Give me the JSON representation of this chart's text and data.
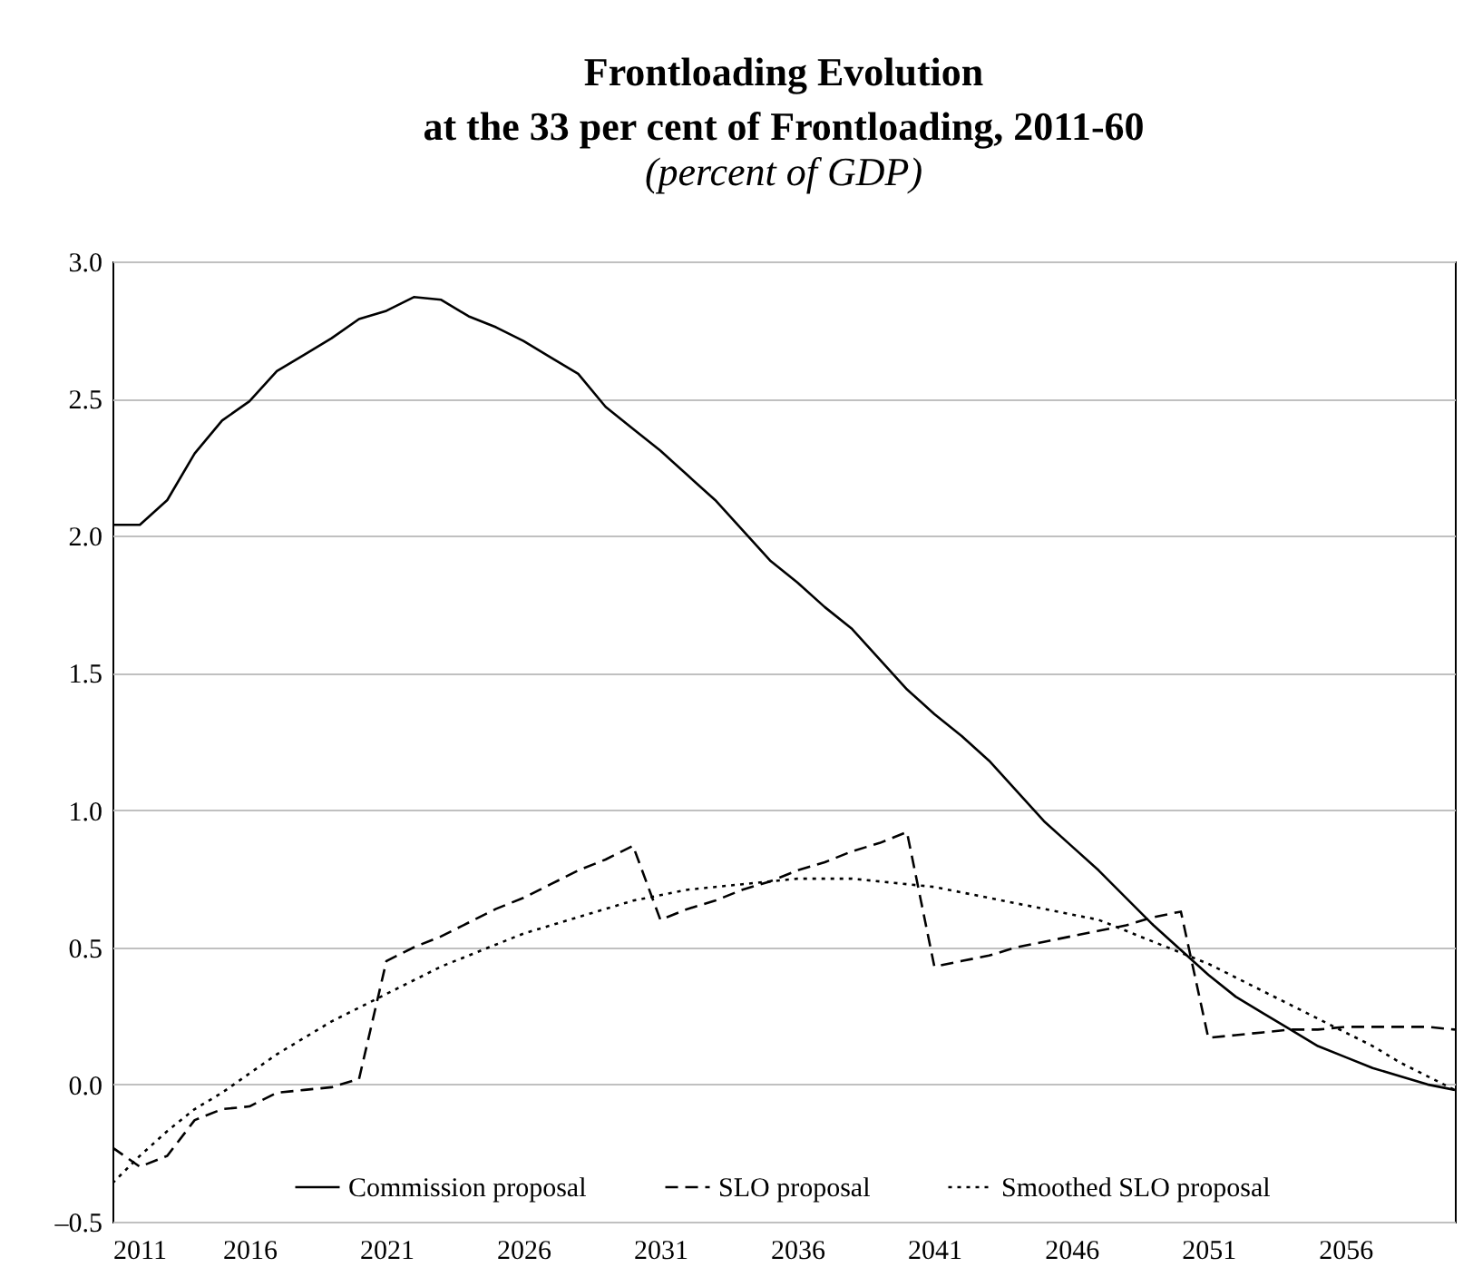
{
  "chart_data": {
    "type": "line",
    "title": "Frontloading Evolution\nat the 33 per cent of Frontloading, 2011-60",
    "subtitle": "(percent of GDP)",
    "x": [
      2011,
      2012,
      2013,
      2014,
      2015,
      2016,
      2017,
      2018,
      2019,
      2020,
      2021,
      2022,
      2023,
      2024,
      2025,
      2026,
      2027,
      2028,
      2029,
      2030,
      2031,
      2032,
      2033,
      2034,
      2035,
      2036,
      2037,
      2038,
      2039,
      2040,
      2041,
      2042,
      2043,
      2044,
      2045,
      2046,
      2047,
      2048,
      2049,
      2050,
      2051,
      2052,
      2053,
      2054,
      2055,
      2056,
      2057,
      2058,
      2059,
      2060
    ],
    "series": [
      {
        "name": "Commission proposal",
        "color": "#000000",
        "line_style": "solid",
        "values": [
          2.04,
          2.04,
          2.13,
          2.3,
          2.42,
          2.49,
          2.6,
          2.66,
          2.72,
          2.79,
          2.82,
          2.87,
          2.86,
          2.8,
          2.76,
          2.71,
          2.65,
          2.59,
          2.47,
          2.39,
          2.31,
          2.22,
          2.13,
          2.02,
          1.91,
          1.83,
          1.74,
          1.66,
          1.55,
          1.44,
          1.35,
          1.27,
          1.18,
          1.07,
          0.96,
          0.87,
          0.78,
          0.68,
          0.58,
          0.49,
          0.4,
          0.32,
          0.26,
          0.2,
          0.14,
          0.1,
          0.06,
          0.03,
          0.0,
          -0.02
        ]
      },
      {
        "name": "SLO proposal",
        "color": "#000000",
        "line_style": "dashed",
        "values": [
          -0.23,
          -0.3,
          -0.26,
          -0.13,
          -0.09,
          -0.08,
          -0.03,
          -0.02,
          -0.01,
          0.02,
          0.45,
          0.5,
          0.54,
          0.59,
          0.64,
          0.68,
          0.73,
          0.78,
          0.82,
          0.87,
          0.6,
          0.64,
          0.67,
          0.71,
          0.74,
          0.78,
          0.81,
          0.85,
          0.88,
          0.92,
          0.43,
          0.45,
          0.47,
          0.5,
          0.52,
          0.54,
          0.56,
          0.58,
          0.61,
          0.63,
          0.17,
          0.18,
          0.19,
          0.2,
          0.2,
          0.21,
          0.21,
          0.21,
          0.21,
          0.2
        ]
      },
      {
        "name": "Smoothed SLO proposal",
        "color": "#000000",
        "line_style": "dotted",
        "values": [
          -0.36,
          -0.26,
          -0.17,
          -0.09,
          -0.03,
          0.04,
          0.11,
          0.17,
          0.23,
          0.28,
          0.33,
          0.38,
          0.43,
          0.47,
          0.51,
          0.55,
          0.58,
          0.61,
          0.64,
          0.67,
          0.69,
          0.71,
          0.72,
          0.73,
          0.74,
          0.75,
          0.75,
          0.75,
          0.74,
          0.73,
          0.72,
          0.7,
          0.68,
          0.66,
          0.64,
          0.62,
          0.6,
          0.56,
          0.52,
          0.48,
          0.44,
          0.39,
          0.34,
          0.29,
          0.24,
          0.19,
          0.14,
          0.08,
          0.03,
          -0.02
        ]
      }
    ],
    "xlim": [
      2011,
      2060
    ],
    "xticks": [
      2011,
      2016,
      2021,
      2026,
      2031,
      2036,
      2041,
      2046,
      2051,
      2056
    ],
    "ylim": [
      -0.5,
      3.0
    ],
    "yticks": [
      {
        "value": -0.5,
        "label": "–0.5"
      },
      {
        "value": 0,
        "label": "0.0"
      },
      {
        "value": 0.5,
        "label": "0.5"
      },
      {
        "value": 1,
        "label": "1.0"
      },
      {
        "value": 1.5,
        "label": "1.5"
      },
      {
        "value": 2,
        "label": "2.0"
      },
      {
        "value": 2.5,
        "label": "2.5"
      },
      {
        "value": 3,
        "label": "3.0"
      }
    ],
    "grid": "y",
    "legend": "bottom",
    "marker": "none"
  }
}
